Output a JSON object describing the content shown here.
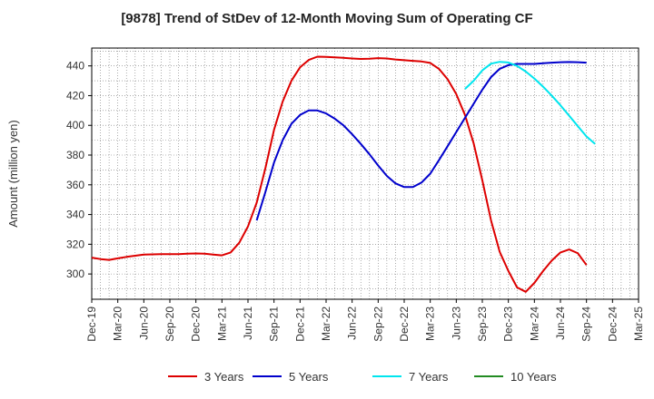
{
  "chart_data": {
    "type": "line",
    "title": "[9878]  Trend of StDev of 12-Month Moving Sum of Operating CF",
    "ylabel": "Amount (million yen)",
    "xlabel": "",
    "ylim": [
      283,
      452
    ],
    "yticks": [
      300,
      320,
      340,
      360,
      380,
      400,
      420,
      440
    ],
    "x_tick_labels": [
      "Dec-19",
      "Mar-20",
      "Jun-20",
      "Sep-20",
      "Dec-20",
      "Mar-21",
      "Jun-21",
      "Sep-21",
      "Dec-21",
      "Mar-22",
      "Jun-22",
      "Sep-22",
      "Dec-22",
      "Mar-23",
      "Jun-23",
      "Sep-23",
      "Dec-23",
      "Mar-24",
      "Jun-24",
      "Sep-24",
      "Dec-24",
      "Mar-25"
    ],
    "x_range": [
      "Dec-19",
      "Mar-25"
    ],
    "grid": true,
    "legend_position": "bottom",
    "series": [
      {
        "name": "3 Years",
        "color": "#dd0000",
        "points": [
          [
            "Dec-19",
            311
          ],
          [
            "Jan-20",
            310
          ],
          [
            "Feb-20",
            309.5
          ],
          [
            "Mar-20",
            310.5
          ],
          [
            "Apr-20",
            311.5
          ],
          [
            "May-20",
            312.3
          ],
          [
            "Jun-20",
            313
          ],
          [
            "Jul-20",
            313.2
          ],
          [
            "Aug-20",
            313.3
          ],
          [
            "Sep-20",
            313.3
          ],
          [
            "Oct-20",
            313.4
          ],
          [
            "Nov-20",
            313.6
          ],
          [
            "Dec-20",
            313.8
          ],
          [
            "Jan-21",
            313.6
          ],
          [
            "Feb-21",
            313
          ],
          [
            "Mar-21",
            312.5
          ],
          [
            "Apr-21",
            314.5
          ],
          [
            "May-21",
            321
          ],
          [
            "Jun-21",
            332
          ],
          [
            "Jul-21",
            348
          ],
          [
            "Aug-21",
            371
          ],
          [
            "Sep-21",
            397
          ],
          [
            "Oct-21",
            416
          ],
          [
            "Nov-21",
            430
          ],
          [
            "Dec-21",
            439
          ],
          [
            "Jan-22",
            444
          ],
          [
            "Feb-22",
            446.2
          ],
          [
            "Mar-22",
            446
          ],
          [
            "Apr-22",
            445.7
          ],
          [
            "May-22",
            445.4
          ],
          [
            "Jun-22",
            445
          ],
          [
            "Jul-22",
            444.7
          ],
          [
            "Aug-22",
            444.8
          ],
          [
            "Sep-22",
            445.2
          ],
          [
            "Oct-22",
            445
          ],
          [
            "Nov-22",
            444.3
          ],
          [
            "Dec-22",
            443.8
          ],
          [
            "Jan-23",
            443.4
          ],
          [
            "Feb-23",
            443
          ],
          [
            "Mar-23",
            442
          ],
          [
            "Apr-23",
            438
          ],
          [
            "May-23",
            431
          ],
          [
            "Jun-23",
            421
          ],
          [
            "Jul-23",
            407
          ],
          [
            "Aug-23",
            388
          ],
          [
            "Sep-23",
            363
          ],
          [
            "Oct-23",
            336
          ],
          [
            "Nov-23",
            315
          ],
          [
            "Dec-23",
            302
          ],
          [
            "Jan-24",
            291
          ],
          [
            "Feb-24",
            288
          ],
          [
            "Mar-24",
            294
          ],
          [
            "Apr-24",
            302
          ],
          [
            "May-24",
            309
          ],
          [
            "Jun-24",
            314.5
          ],
          [
            "Jul-24",
            316.5
          ],
          [
            "Aug-24",
            314
          ],
          [
            "Sep-24",
            306
          ]
        ]
      },
      {
        "name": "5 Years",
        "color": "#0000cc",
        "points": [
          [
            "Jul-21",
            336
          ],
          [
            "Aug-21",
            355
          ],
          [
            "Sep-21",
            375
          ],
          [
            "Oct-21",
            390
          ],
          [
            "Nov-21",
            401
          ],
          [
            "Dec-21",
            407
          ],
          [
            "Jan-22",
            410
          ],
          [
            "Feb-22",
            410
          ],
          [
            "Mar-22",
            408
          ],
          [
            "Apr-22",
            404.5
          ],
          [
            "May-22",
            400
          ],
          [
            "Jun-22",
            394
          ],
          [
            "Jul-22",
            387.5
          ],
          [
            "Aug-22",
            380.5
          ],
          [
            "Sep-22",
            373
          ],
          [
            "Oct-22",
            366
          ],
          [
            "Nov-22",
            361
          ],
          [
            "Dec-22",
            358.5
          ],
          [
            "Jan-23",
            358.5
          ],
          [
            "Feb-23",
            361.5
          ],
          [
            "Mar-23",
            367.5
          ],
          [
            "Apr-23",
            376.5
          ],
          [
            "May-23",
            386
          ],
          [
            "Jun-23",
            395.5
          ],
          [
            "Jul-23",
            405
          ],
          [
            "Aug-23",
            414.5
          ],
          [
            "Sep-23",
            424
          ],
          [
            "Oct-23",
            432.5
          ],
          [
            "Nov-23",
            438
          ],
          [
            "Dec-23",
            440.5
          ],
          [
            "Jan-24",
            441.3
          ],
          [
            "Feb-24",
            441.3
          ],
          [
            "Mar-24",
            441.3
          ],
          [
            "Apr-24",
            441.8
          ],
          [
            "May-24",
            442.2
          ],
          [
            "Jun-24",
            442.5
          ],
          [
            "Jul-24",
            442.6
          ],
          [
            "Aug-24",
            442.5
          ],
          [
            "Sep-24",
            442.2
          ]
        ]
      },
      {
        "name": "7 Years",
        "color": "#00e5ee",
        "points": [
          [
            "Jul-23",
            424.5
          ],
          [
            "Aug-23",
            430
          ],
          [
            "Sep-23",
            437
          ],
          [
            "Oct-23",
            441.5
          ],
          [
            "Nov-23",
            442.7
          ],
          [
            "Dec-23",
            442.3
          ],
          [
            "Jan-24",
            440
          ],
          [
            "Feb-24",
            436.2
          ],
          [
            "Mar-24",
            431.5
          ],
          [
            "Apr-24",
            426
          ],
          [
            "May-24",
            420
          ],
          [
            "Jun-24",
            413.5
          ],
          [
            "Jul-24",
            406.5
          ],
          [
            "Aug-24",
            399.5
          ],
          [
            "Sep-24",
            392.5
          ],
          [
            "Oct-24",
            387.5
          ]
        ]
      },
      {
        "name": "10 Years",
        "color": "#228b22",
        "points": []
      }
    ]
  }
}
